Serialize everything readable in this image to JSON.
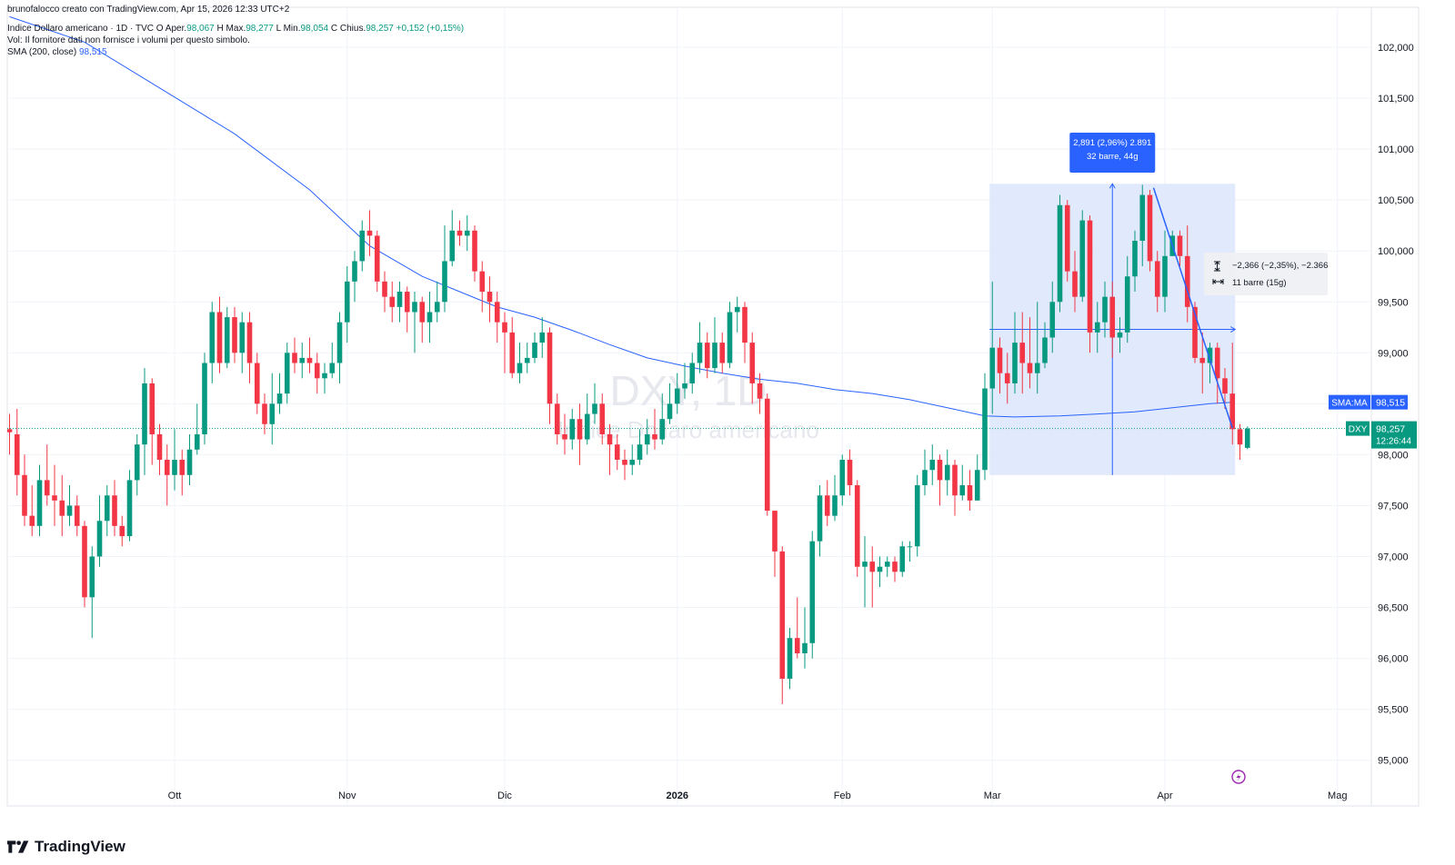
{
  "credit": "brunofalocco creato con TradingView.com, Apr 15, 2026 12:33 UTC+2",
  "legend": {
    "title": "Indice Dollaro americano · 1D · TVC",
    "o_label": "O",
    "o_prefix": "Aper.",
    "open": "98,067",
    "h_label": "H",
    "h_prefix": "Max.",
    "high": "98,277",
    "l_label": "L",
    "l_prefix": "Min.",
    "low": "98,054",
    "c_label": "C",
    "c_prefix": "Chius.",
    "close": "98,257",
    "change": "+0,152 (+0,15%)",
    "volume_note": "Vol: Il fornitore dati non fornisce i volumi per questo simbolo.",
    "sma_label": "SMA (200, close)",
    "sma_value": "98,515"
  },
  "watermark": {
    "symbol": "DXY, 1D",
    "name": "Indice Dollaro americano"
  },
  "logo_text": "TradingView",
  "colors": {
    "up": "#089981",
    "down": "#f23645",
    "sma": "#2962ff",
    "measure_fill": "#dce6fb",
    "measure_line": "#2962ff"
  },
  "chart_data": {
    "type": "candlestick",
    "symbol": "DXY",
    "interval": "1D",
    "y_range": [
      94.8,
      102.3
    ],
    "y_ticks": [
      "95,000",
      "95,500",
      "96,000",
      "96,500",
      "97,000",
      "97,500",
      "98,000",
      "98,500",
      "99,000",
      "99,500",
      "100,000",
      "100,500",
      "101,000",
      "101,500",
      "102,000"
    ],
    "x_labels": [
      {
        "label": "Ott",
        "bar": 22
      },
      {
        "label": "Nov",
        "bar": 45
      },
      {
        "label": "Dic",
        "bar": 66
      },
      {
        "label": "2026",
        "bar": 89
      },
      {
        "label": "Feb",
        "bar": 111
      },
      {
        "label": "Mar",
        "bar": 131
      },
      {
        "label": "Apr",
        "bar": 154
      },
      {
        "label": "Mag",
        "bar": 177
      }
    ],
    "candles": [
      [
        98.25,
        98.22,
        98.4,
        98.0
      ],
      [
        98.2,
        97.8,
        98.45,
        97.6
      ],
      [
        97.8,
        97.4,
        98.0,
        97.3
      ],
      [
        97.4,
        97.3,
        97.7,
        97.2
      ],
      [
        97.3,
        97.75,
        97.9,
        97.2
      ],
      [
        97.75,
        97.6,
        98.1,
        97.5
      ],
      [
        97.6,
        97.55,
        97.9,
        97.3
      ],
      [
        97.55,
        97.4,
        97.8,
        97.2
      ],
      [
        97.4,
        97.5,
        97.7,
        97.3
      ],
      [
        97.5,
        97.3,
        97.6,
        97.2
      ],
      [
        97.3,
        96.6,
        97.35,
        96.5
      ],
      [
        96.6,
        97.0,
        97.1,
        96.2
      ],
      [
        97.0,
        97.35,
        97.6,
        96.9
      ],
      [
        97.35,
        97.6,
        97.7,
        97.2
      ],
      [
        97.6,
        97.3,
        97.75,
        97.2
      ],
      [
        97.3,
        97.2,
        97.4,
        97.1
      ],
      [
        97.2,
        97.75,
        97.85,
        97.15
      ],
      [
        97.75,
        98.1,
        98.2,
        97.6
      ],
      [
        98.1,
        98.7,
        98.85,
        97.8
      ],
      [
        98.7,
        98.2,
        98.75,
        97.9
      ],
      [
        98.2,
        97.95,
        98.3,
        97.8
      ],
      [
        97.95,
        97.8,
        98.1,
        97.5
      ],
      [
        97.8,
        97.95,
        98.25,
        97.65
      ],
      [
        97.95,
        97.8,
        98.05,
        97.6
      ],
      [
        97.8,
        98.05,
        98.2,
        97.7
      ],
      [
        98.05,
        98.2,
        98.5,
        98.0
      ],
      [
        98.2,
        98.9,
        99.0,
        98.1
      ],
      [
        98.9,
        99.4,
        99.5,
        98.7
      ],
      [
        99.4,
        98.9,
        99.55,
        98.8
      ],
      [
        98.9,
        99.35,
        99.45,
        98.85
      ],
      [
        99.35,
        99.0,
        99.45,
        98.9
      ],
      [
        99.0,
        99.3,
        99.4,
        98.8
      ],
      [
        99.3,
        98.9,
        99.4,
        98.7
      ],
      [
        98.9,
        98.5,
        99.0,
        98.4
      ],
      [
        98.5,
        98.3,
        98.6,
        98.2
      ],
      [
        98.3,
        98.5,
        98.8,
        98.1
      ],
      [
        98.5,
        98.6,
        98.8,
        98.4
      ],
      [
        98.6,
        99.0,
        99.1,
        98.5
      ],
      [
        99.0,
        98.9,
        99.15,
        98.8
      ],
      [
        98.9,
        98.95,
        99.1,
        98.75
      ],
      [
        98.95,
        98.9,
        99.15,
        98.8
      ],
      [
        98.9,
        98.75,
        99.0,
        98.6
      ],
      [
        98.75,
        98.8,
        98.9,
        98.6
      ],
      [
        98.8,
        98.9,
        99.1,
        98.75
      ],
      [
        98.9,
        99.3,
        99.4,
        98.7
      ],
      [
        99.3,
        99.7,
        99.85,
        99.1
      ],
      [
        99.7,
        99.9,
        100.0,
        99.5
      ],
      [
        99.9,
        100.2,
        100.3,
        99.8
      ],
      [
        100.2,
        100.15,
        100.4,
        99.95
      ],
      [
        100.15,
        99.7,
        100.2,
        99.6
      ],
      [
        99.7,
        99.55,
        99.8,
        99.4
      ],
      [
        99.55,
        99.45,
        99.7,
        99.3
      ],
      [
        99.45,
        99.6,
        99.7,
        99.3
      ],
      [
        99.6,
        99.4,
        99.65,
        99.2
      ],
      [
        99.4,
        99.5,
        99.6,
        99.0
      ],
      [
        99.5,
        99.3,
        99.55,
        99.1
      ],
      [
        99.3,
        99.4,
        99.6,
        99.1
      ],
      [
        99.4,
        99.5,
        99.7,
        99.3
      ],
      [
        99.5,
        99.9,
        100.25,
        99.4
      ],
      [
        99.9,
        100.2,
        100.4,
        99.85
      ],
      [
        100.2,
        100.15,
        100.3,
        100.05
      ],
      [
        100.15,
        100.2,
        100.35,
        100.0
      ],
      [
        100.2,
        99.8,
        100.25,
        99.7
      ],
      [
        99.8,
        99.6,
        99.9,
        99.4
      ],
      [
        99.6,
        99.5,
        99.75,
        99.3
      ],
      [
        99.5,
        99.3,
        99.6,
        99.1
      ],
      [
        99.3,
        99.2,
        99.4,
        98.8
      ],
      [
        99.2,
        98.8,
        99.35,
        98.75
      ],
      [
        98.8,
        98.9,
        99.1,
        98.7
      ],
      [
        98.9,
        98.95,
        99.1,
        98.8
      ],
      [
        98.95,
        99.1,
        99.2,
        98.9
      ],
      [
        99.1,
        99.2,
        99.35,
        98.95
      ],
      [
        99.2,
        98.5,
        99.25,
        98.3
      ],
      [
        98.5,
        98.2,
        98.6,
        98.1
      ],
      [
        98.2,
        98.15,
        98.4,
        98.0
      ],
      [
        98.15,
        98.35,
        98.45,
        98.05
      ],
      [
        98.35,
        98.15,
        98.5,
        97.9
      ],
      [
        98.15,
        98.4,
        98.6,
        98.1
      ],
      [
        98.4,
        98.5,
        98.7,
        98.3
      ],
      [
        98.5,
        98.2,
        98.6,
        98.1
      ],
      [
        98.2,
        98.1,
        98.3,
        97.8
      ],
      [
        98.1,
        97.95,
        98.2,
        97.85
      ],
      [
        97.95,
        97.9,
        98.05,
        97.75
      ],
      [
        97.9,
        97.95,
        98.1,
        97.8
      ],
      [
        97.95,
        98.1,
        98.25,
        97.9
      ],
      [
        98.1,
        98.2,
        98.35,
        98.0
      ],
      [
        98.2,
        98.15,
        98.45,
        98.05
      ],
      [
        98.15,
        98.35,
        98.6,
        98.1
      ],
      [
        98.35,
        98.5,
        98.7,
        98.3
      ],
      [
        98.5,
        98.65,
        98.8,
        98.4
      ],
      [
        98.65,
        98.7,
        98.9,
        98.55
      ],
      [
        98.7,
        98.9,
        99.0,
        98.6
      ],
      [
        98.9,
        99.1,
        99.3,
        98.8
      ],
      [
        99.1,
        98.85,
        99.2,
        98.75
      ],
      [
        98.85,
        99.1,
        99.35,
        98.8
      ],
      [
        99.1,
        98.9,
        99.2,
        98.8
      ],
      [
        98.9,
        99.4,
        99.5,
        98.85
      ],
      [
        99.4,
        99.45,
        99.55,
        99.2
      ],
      [
        99.45,
        99.1,
        99.5,
        98.9
      ],
      [
        99.1,
        98.7,
        99.2,
        98.5
      ],
      [
        98.7,
        98.55,
        98.8,
        98.4
      ],
      [
        98.55,
        97.45,
        98.6,
        97.4
      ],
      [
        97.45,
        97.05,
        97.35,
        96.8
      ],
      [
        97.05,
        95.8,
        97.1,
        95.55
      ],
      [
        95.8,
        96.2,
        96.3,
        95.7
      ],
      [
        96.2,
        96.05,
        96.6,
        96.0
      ],
      [
        96.05,
        96.15,
        96.5,
        95.9
      ],
      [
        96.15,
        97.15,
        97.25,
        96.0
      ],
      [
        97.15,
        97.6,
        97.7,
        97.0
      ],
      [
        97.6,
        97.4,
        97.75,
        97.3
      ],
      [
        97.4,
        97.6,
        97.8,
        97.35
      ],
      [
        97.6,
        97.95,
        98.0,
        97.5
      ],
      [
        97.95,
        97.7,
        98.05,
        97.6
      ],
      [
        97.7,
        96.9,
        97.75,
        96.8
      ],
      [
        96.9,
        96.95,
        97.2,
        96.5
      ],
      [
        96.95,
        96.85,
        97.1,
        96.5
      ],
      [
        96.85,
        96.9,
        97.0,
        96.7
      ],
      [
        96.9,
        96.95,
        97.0,
        96.8
      ],
      [
        96.95,
        96.85,
        97.0,
        96.75
      ],
      [
        96.85,
        97.1,
        97.15,
        96.8
      ],
      [
        97.1,
        97.1,
        97.15,
        96.95
      ],
      [
        97.1,
        97.7,
        97.8,
        97.0
      ],
      [
        97.7,
        97.85,
        98.05,
        97.6
      ],
      [
        97.85,
        97.95,
        98.1,
        97.7
      ],
      [
        97.95,
        97.75,
        98.0,
        97.5
      ],
      [
        97.75,
        97.9,
        98.05,
        97.6
      ],
      [
        97.9,
        97.6,
        97.95,
        97.4
      ],
      [
        97.6,
        97.7,
        97.9,
        97.55
      ],
      [
        97.7,
        97.55,
        97.85,
        97.45
      ],
      [
        97.55,
        97.85,
        98.0,
        97.6
      ],
      [
        97.85,
        98.65,
        98.8,
        97.75
      ],
      [
        98.65,
        99.05,
        99.7,
        98.4
      ],
      [
        99.05,
        98.8,
        99.15,
        98.6
      ],
      [
        98.8,
        98.7,
        99.0,
        98.5
      ],
      [
        98.7,
        99.1,
        99.4,
        98.6
      ],
      [
        99.1,
        98.9,
        99.4,
        98.6
      ],
      [
        98.9,
        98.8,
        99.35,
        98.65
      ],
      [
        98.8,
        98.9,
        99.5,
        98.6
      ],
      [
        98.9,
        99.15,
        99.3,
        98.85
      ],
      [
        99.15,
        99.5,
        99.7,
        99.0
      ],
      [
        99.5,
        100.45,
        100.55,
        99.4
      ],
      [
        100.45,
        99.8,
        100.5,
        99.7
      ],
      [
        99.8,
        99.55,
        100.0,
        99.4
      ],
      [
        99.55,
        100.3,
        100.4,
        99.5
      ],
      [
        100.3,
        99.2,
        100.35,
        99.0
      ],
      [
        99.2,
        99.3,
        99.5,
        99.0
      ],
      [
        99.3,
        99.55,
        99.7,
        99.15
      ],
      [
        99.55,
        99.15,
        99.7,
        98.95
      ],
      [
        99.15,
        99.2,
        99.35,
        99.0
      ],
      [
        99.2,
        99.75,
        99.95,
        99.1
      ],
      [
        99.75,
        100.1,
        100.2,
        99.6
      ],
      [
        100.1,
        100.55,
        100.65,
        99.85
      ],
      [
        100.55,
        99.9,
        100.6,
        99.8
      ],
      [
        99.9,
        99.55,
        100.0,
        99.4
      ],
      [
        99.55,
        99.95,
        100.2,
        99.4
      ],
      [
        99.95,
        100.15,
        100.2,
        99.95
      ],
      [
        100.15,
        99.95,
        100.2,
        99.85
      ],
      [
        99.95,
        99.45,
        100.25,
        99.3
      ],
      [
        99.45,
        98.95,
        99.5,
        98.9
      ],
      [
        98.95,
        98.9,
        99.2,
        98.6
      ],
      [
        98.9,
        99.05,
        99.1,
        98.7
      ],
      [
        99.05,
        98.75,
        99.1,
        98.5
      ],
      [
        98.75,
        98.6,
        98.85,
        98.45
      ],
      [
        98.6,
        98.25,
        99.1,
        98.1
      ],
      [
        98.25,
        98.1,
        98.3,
        97.95
      ],
      [
        98.067,
        98.257,
        98.277,
        98.054
      ]
    ],
    "sma": [
      [
        0,
        102.3
      ],
      [
        10,
        102.05
      ],
      [
        20,
        101.6
      ],
      [
        30,
        101.15
      ],
      [
        40,
        100.6
      ],
      [
        48,
        100.05
      ],
      [
        55,
        99.75
      ],
      [
        60,
        99.6
      ],
      [
        65,
        99.45
      ],
      [
        70,
        99.35
      ],
      [
        75,
        99.22
      ],
      [
        80,
        99.08
      ],
      [
        85,
        98.95
      ],
      [
        90,
        98.87
      ],
      [
        95,
        98.8
      ],
      [
        100,
        98.74
      ],
      [
        105,
        98.7
      ],
      [
        110,
        98.64
      ],
      [
        115,
        98.6
      ],
      [
        120,
        98.54
      ],
      [
        125,
        98.46
      ],
      [
        130,
        98.38
      ],
      [
        134,
        98.37
      ],
      [
        140,
        98.38
      ],
      [
        145,
        98.4
      ],
      [
        150,
        98.42
      ],
      [
        155,
        98.46
      ],
      [
        160,
        98.5
      ],
      [
        163,
        98.515
      ]
    ],
    "measure": {
      "label_top_line1": "2,891 (2,96%) 2.891",
      "label_top_line2": "32 barre, 44g",
      "bar_start": 131,
      "bar_end": 163,
      "low": 97.8,
      "high": 100.66
    },
    "trend_measure": {
      "line1": "−2,366 (−2,35%), −2.366",
      "line2": "11 barre (15g)",
      "bar_start": 152,
      "price_start": 100.62,
      "bar_end": 163,
      "price_end": 98.26
    },
    "price_tags": [
      {
        "label": "SMA:MA",
        "value": "98,515"
      },
      {
        "label": "DXY",
        "value": "98,257",
        "sub": "12:26:44"
      }
    ],
    "last_price": 98.257
  }
}
